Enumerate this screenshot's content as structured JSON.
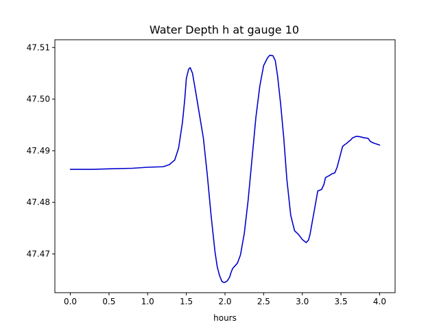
{
  "chart_data": {
    "type": "line",
    "title": "Water Depth h at gauge 10",
    "xlabel": "hours",
    "ylabel": "",
    "xlim": [
      -0.2,
      4.2
    ],
    "ylim": [
      47.4625,
      47.5115
    ],
    "xticks": [
      0.0,
      0.5,
      1.0,
      1.5,
      2.0,
      2.5,
      3.0,
      3.5,
      4.0
    ],
    "xtick_labels": [
      "0.0",
      "0.5",
      "1.0",
      "1.5",
      "2.0",
      "2.5",
      "3.0",
      "3.5",
      "4.0"
    ],
    "yticks": [
      47.47,
      47.48,
      47.49,
      47.5,
      47.51
    ],
    "ytick_labels": [
      "47.47",
      "47.48",
      "47.49",
      "47.50",
      "47.51"
    ],
    "grid": false,
    "series": [
      {
        "color": "#0000cc",
        "x": [
          0.0,
          0.3,
          0.5,
          0.8,
          1.0,
          1.2,
          1.28,
          1.35,
          1.4,
          1.45,
          1.48,
          1.5,
          1.53,
          1.55,
          1.58,
          1.62,
          1.67,
          1.72,
          1.77,
          1.82,
          1.87,
          1.9,
          1.93,
          1.96,
          1.98,
          2.0,
          2.03,
          2.06,
          2.08,
          2.1,
          2.13,
          2.16,
          2.2,
          2.25,
          2.3,
          2.35,
          2.4,
          2.45,
          2.5,
          2.55,
          2.58,
          2.62,
          2.65,
          2.68,
          2.72,
          2.76,
          2.8,
          2.85,
          2.9,
          2.95,
          3.0,
          3.05,
          3.08,
          3.1,
          3.12,
          3.15,
          3.2,
          3.25,
          3.28,
          3.3,
          3.35,
          3.38,
          3.42,
          3.45,
          3.48,
          3.52,
          3.55,
          3.58,
          3.6,
          3.62,
          3.65,
          3.7,
          3.75,
          3.8,
          3.85,
          3.88,
          3.92,
          3.96,
          4.0
        ],
        "y": [
          47.4864,
          47.4864,
          47.4865,
          47.4866,
          47.4868,
          47.4869,
          47.4873,
          47.4882,
          47.4905,
          47.4955,
          47.5,
          47.504,
          47.5058,
          47.5061,
          47.505,
          47.5015,
          47.497,
          47.4925,
          47.4855,
          47.4775,
          47.4705,
          47.4675,
          47.4658,
          47.4647,
          47.4645,
          47.4645,
          47.4648,
          47.4655,
          47.4665,
          47.4672,
          47.4677,
          47.4682,
          47.4698,
          47.474,
          47.4805,
          47.4885,
          47.4965,
          47.5025,
          47.5065,
          47.508,
          47.5085,
          47.5084,
          47.5075,
          47.5045,
          47.499,
          47.4925,
          47.4845,
          47.4775,
          47.4745,
          47.4738,
          47.4728,
          47.4722,
          47.4727,
          47.4738,
          47.4755,
          47.478,
          47.4822,
          47.4825,
          47.4835,
          47.4848,
          47.4852,
          47.4855,
          47.4857,
          47.4868,
          47.4885,
          47.4908,
          47.4912,
          47.4915,
          47.4918,
          47.492,
          47.4925,
          47.4928,
          47.4927,
          47.4925,
          47.4924,
          47.4918,
          47.4915,
          47.4913,
          47.4911
        ]
      }
    ]
  }
}
